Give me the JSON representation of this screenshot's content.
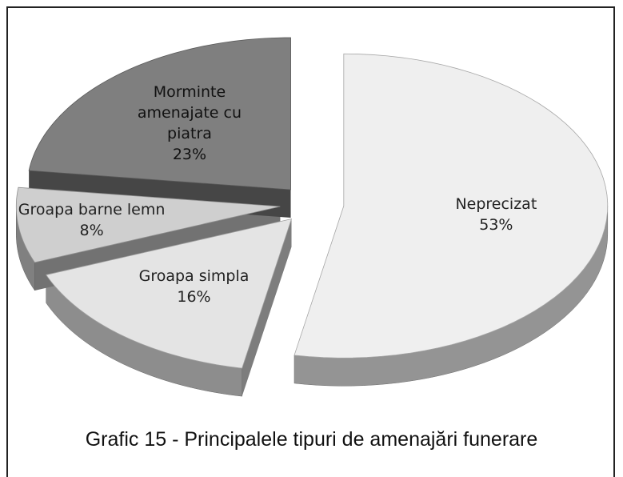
{
  "chart_data": {
    "type": "pie",
    "caption": "Grafic 15 - Principalele tipuri de amenajări funerare",
    "categories": [
      "Neprecizat",
      "Groapa simpla",
      "Groapa barne lemn",
      "Morminte amenajate cu piatra"
    ],
    "values": [
      53,
      16,
      8,
      23
    ],
    "value_labels": [
      "53%",
      "16%",
      "8%",
      "23%"
    ],
    "colors": [
      "#efefef",
      "#e4e4e4",
      "#cfcfcf",
      "#7f7f7f"
    ]
  }
}
